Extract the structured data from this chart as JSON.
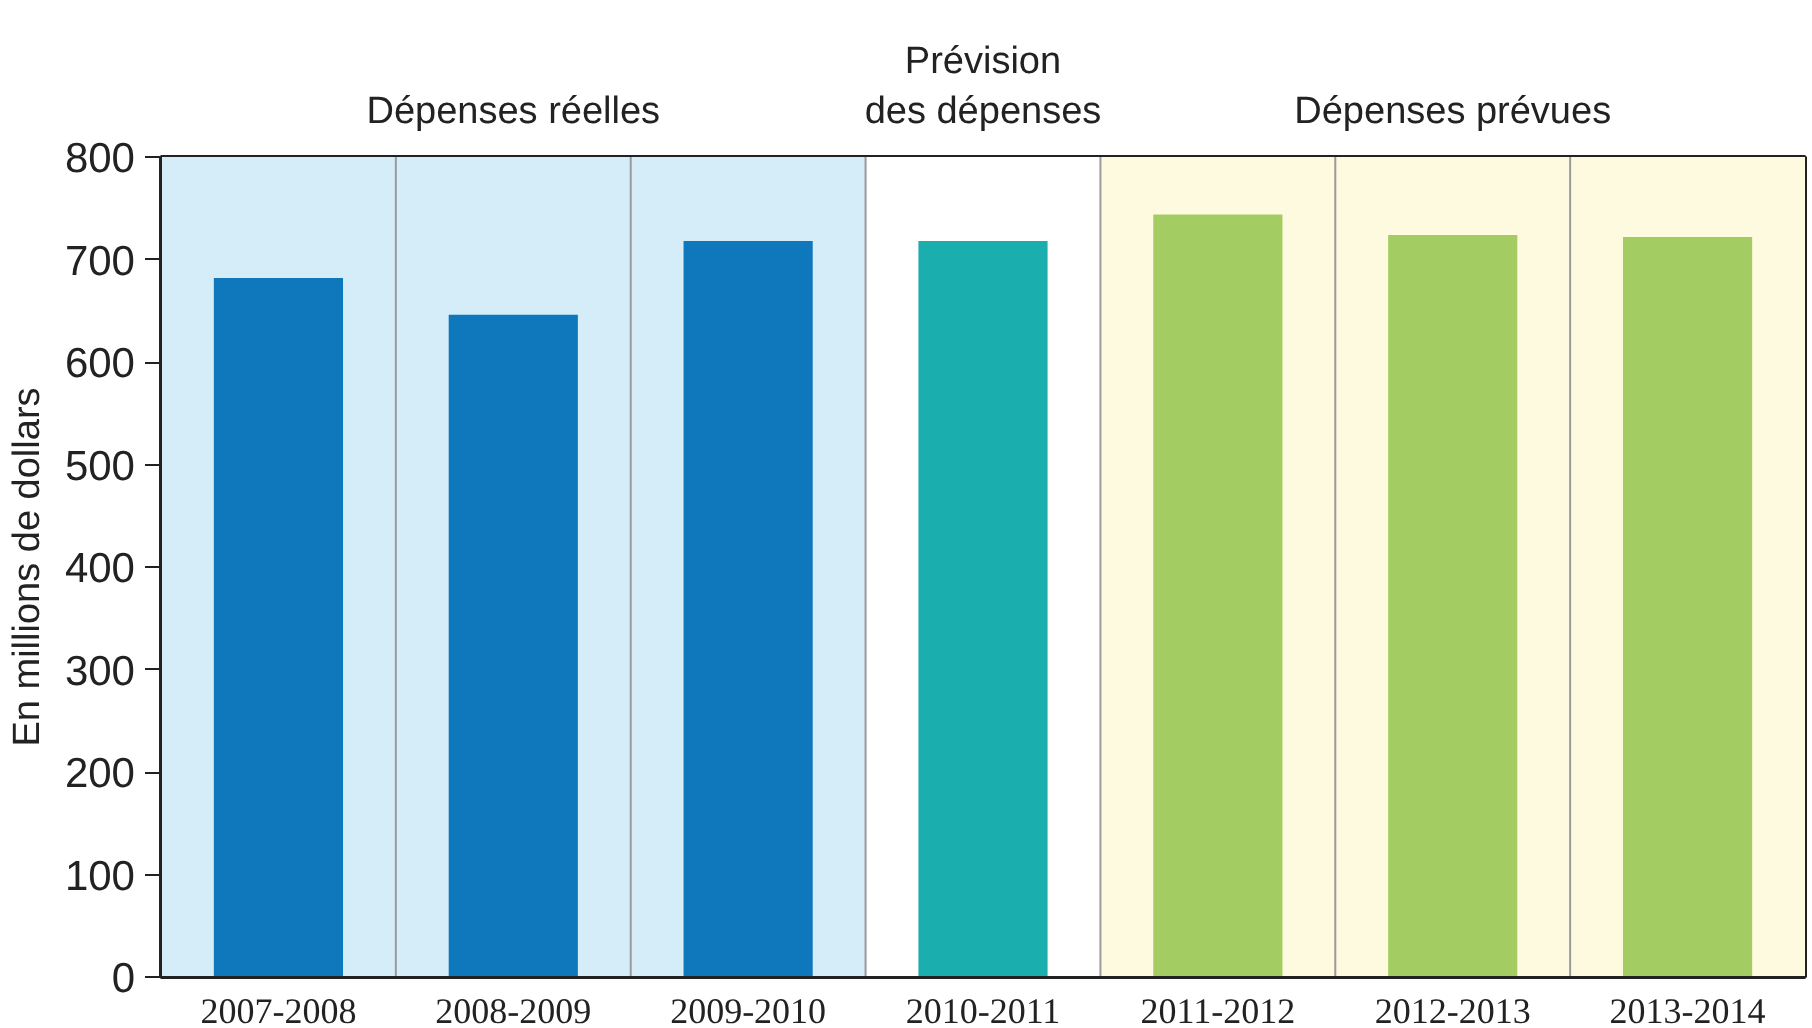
{
  "chart_data": {
    "type": "bar",
    "ylabel": "En millions de dollars",
    "categories": [
      "2007-2008",
      "2008-2009",
      "2009-2010",
      "2010-2011",
      "2011-2012",
      "2012-2013",
      "2013-2014"
    ],
    "values": [
      682,
      646,
      718,
      718,
      744,
      724,
      722
    ],
    "colors": [
      "#0f77bb",
      "#0f77bb",
      "#0f77bb",
      "#1aaeae",
      "#a3cd62",
      "#a3cd62",
      "#a3cd62"
    ],
    "ylim": [
      0,
      800
    ],
    "yticks": [
      0,
      100,
      200,
      300,
      400,
      500,
      600,
      700,
      800
    ],
    "grid": true,
    "bands": [
      {
        "axis": "x",
        "from": "2007-2008",
        "to": "2009-2010",
        "label": "Dépenses réelles",
        "color": "#d5ecf9"
      },
      {
        "axis": "x",
        "from": "2010-2011",
        "to": "2010-2011",
        "label": "Prévision\ndes dépenses",
        "color": "#ffffff"
      },
      {
        "axis": "x",
        "from": "2011-2012",
        "to": "2013-2014",
        "label": "Dépenses prévues",
        "color": "#fefadf"
      }
    ]
  }
}
